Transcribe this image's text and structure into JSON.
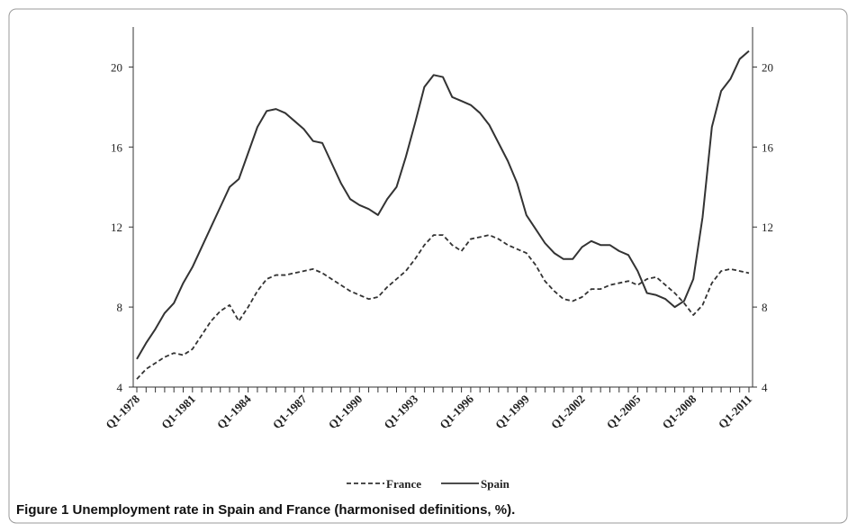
{
  "chart_data": {
    "type": "line",
    "caption": "Figure 1 Unemployment rate in Spain and France (harmonised definitions, %).",
    "categories": [
      "Q1-1978",
      null,
      null,
      null,
      null,
      null,
      "Q1-1981",
      null,
      null,
      null,
      null,
      null,
      "Q1-1984",
      null,
      null,
      null,
      null,
      null,
      "Q1-1987",
      null,
      null,
      null,
      null,
      null,
      "Q1-1990",
      null,
      null,
      null,
      null,
      null,
      "Q1-1993",
      null,
      null,
      null,
      null,
      null,
      "Q1-1996",
      null,
      null,
      null,
      null,
      null,
      "Q1-1999",
      null,
      null,
      null,
      null,
      null,
      "Q1-2002",
      null,
      null,
      null,
      null,
      null,
      "Q1-2005",
      null,
      null,
      null,
      null,
      null,
      "Q1-2008",
      null,
      null,
      null,
      null,
      null,
      "Q1-2011"
    ],
    "series": [
      {
        "name": "France",
        "color": "#333333",
        "dashed": true,
        "values": [
          4.4,
          4.9,
          5.2,
          5.5,
          5.7,
          5.6,
          5.9,
          6.6,
          7.3,
          7.8,
          8.1,
          7.3,
          8.0,
          8.8,
          9.4,
          9.6,
          9.6,
          9.7,
          9.8,
          9.9,
          9.7,
          9.4,
          9.1,
          8.8,
          8.6,
          8.4,
          8.5,
          9.0,
          9.4,
          9.8,
          10.4,
          11.1,
          11.6,
          11.6,
          11.1,
          10.8,
          11.4,
          11.5,
          11.6,
          11.4,
          11.1,
          10.9,
          10.7,
          10.1,
          9.3,
          8.8,
          8.4,
          8.3,
          8.5,
          8.9,
          8.9,
          9.1,
          9.2,
          9.3,
          9.1,
          9.4,
          9.5,
          9.1,
          8.7,
          8.2,
          7.6,
          8.1,
          9.2,
          9.8,
          9.9,
          9.8,
          9.7
        ]
      },
      {
        "name": "Spain",
        "color": "#333333",
        "dashed": false,
        "values": [
          5.4,
          6.2,
          6.9,
          7.7,
          8.2,
          9.2,
          10.0,
          11.0,
          12.0,
          13.0,
          14.0,
          14.4,
          15.7,
          17.0,
          17.8,
          17.9,
          17.7,
          17.3,
          16.9,
          16.3,
          16.2,
          15.2,
          14.2,
          13.4,
          13.1,
          12.9,
          12.6,
          13.4,
          14.0,
          15.5,
          17.2,
          19.0,
          19.6,
          19.5,
          18.5,
          18.3,
          18.1,
          17.7,
          17.1,
          16.2,
          15.3,
          14.2,
          12.6,
          11.9,
          11.2,
          10.7,
          10.4,
          10.4,
          11.0,
          11.3,
          11.1,
          11.1,
          10.8,
          10.6,
          9.8,
          8.7,
          8.6,
          8.4,
          8.0,
          8.3,
          9.4,
          12.5,
          17.0,
          18.8,
          19.4,
          20.4,
          20.8
        ]
      }
    ],
    "ylim": [
      4,
      22
    ],
    "yticks": [
      4,
      8,
      12,
      16,
      20
    ],
    "y2lim": [
      4,
      22
    ],
    "y2ticks": [
      4,
      8,
      12,
      16,
      20
    ],
    "legend": "bottom"
  }
}
